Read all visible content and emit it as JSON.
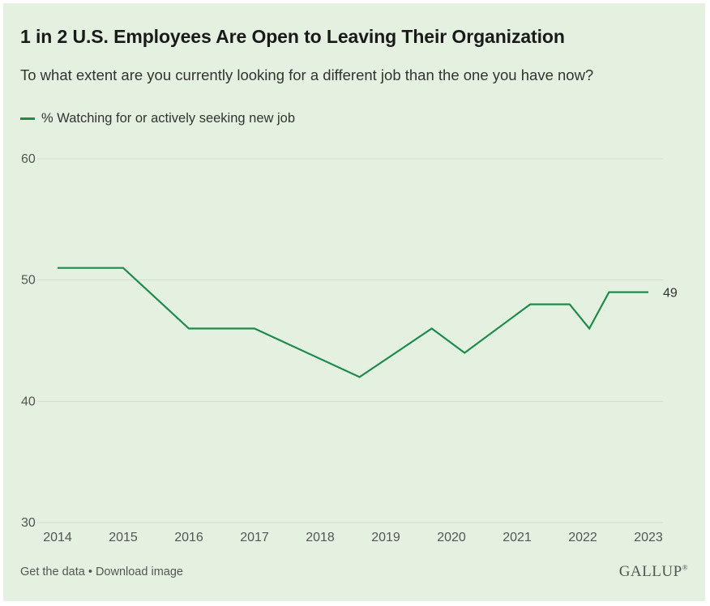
{
  "title": "1 in 2 U.S. Employees Are Open to Leaving Their Organization",
  "subtitle": "To what extent are you currently looking for a different job than the one you have now?",
  "footer": {
    "get_data": "Get the data",
    "separator": " • ",
    "download": "Download image",
    "brand": "GALLUP",
    "brand_mark": "®"
  },
  "colors": {
    "background": "#e4f1e0",
    "line": "#1e8a4c",
    "grid": "#cfdccb",
    "tick_text": "#555555"
  },
  "chart_data": {
    "type": "line",
    "title": "1 in 2 U.S. Employees Are Open to Leaving Their Organization",
    "subtitle": "To what extent are you currently looking for a different job than the one you have now?",
    "xlabel": "",
    "ylabel": "",
    "xlim": [
      2014,
      2023
    ],
    "ylim": [
      30,
      60
    ],
    "x_ticks": [
      "2014",
      "2015",
      "2016",
      "2017",
      "2018",
      "2019",
      "2020",
      "2021",
      "2022",
      "2023"
    ],
    "y_ticks": [
      30,
      40,
      50,
      60
    ],
    "grid": true,
    "legend_position": "top-left",
    "series": [
      {
        "name": "% Watching for or actively seeking new job",
        "color": "#1e8a4c",
        "points": [
          {
            "x": 2014.0,
            "y": 51
          },
          {
            "x": 2015.0,
            "y": 51
          },
          {
            "x": 2016.0,
            "y": 46
          },
          {
            "x": 2017.0,
            "y": 46
          },
          {
            "x": 2018.6,
            "y": 42
          },
          {
            "x": 2019.7,
            "y": 46
          },
          {
            "x": 2020.2,
            "y": 44
          },
          {
            "x": 2021.2,
            "y": 48
          },
          {
            "x": 2021.8,
            "y": 48
          },
          {
            "x": 2022.1,
            "y": 46
          },
          {
            "x": 2022.4,
            "y": 49
          },
          {
            "x": 2023.0,
            "y": 49
          }
        ],
        "end_label": "49"
      }
    ]
  }
}
